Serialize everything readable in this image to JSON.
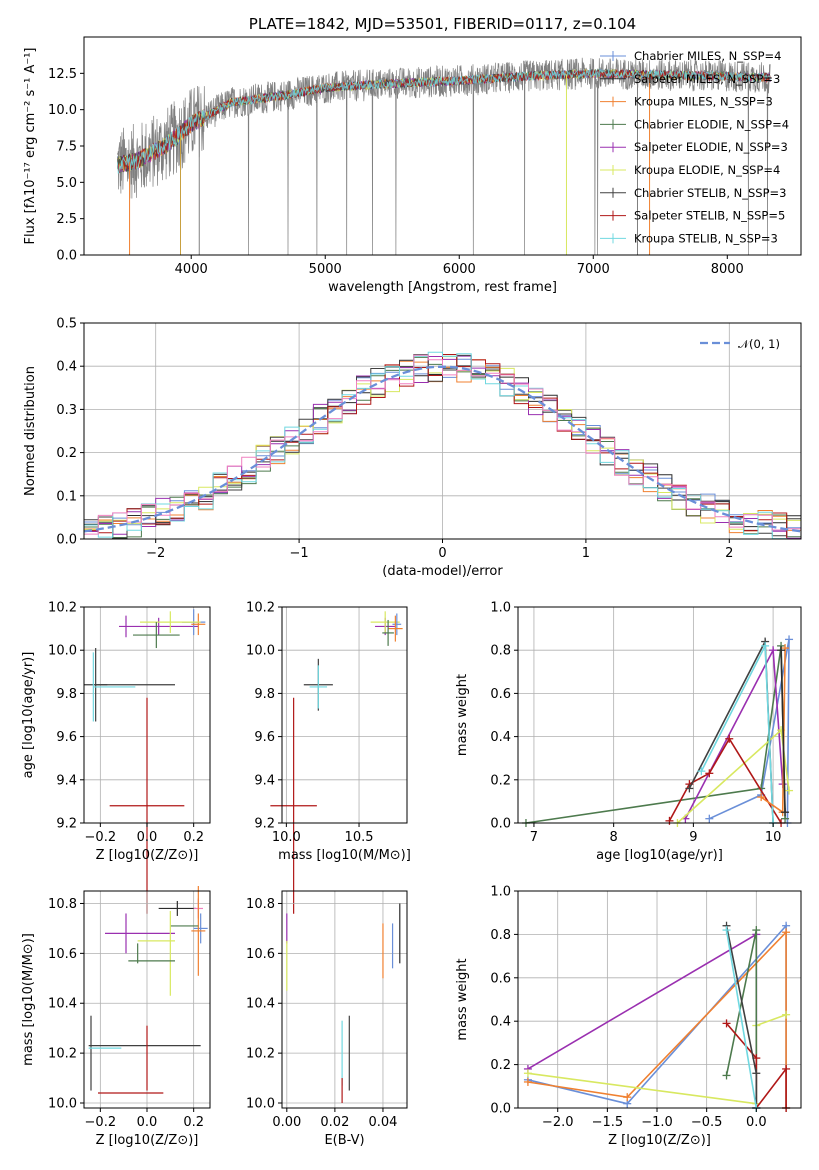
{
  "chart_data": [
    {
      "type": "line",
      "title": "PLATE=1842, MJD=53501, FIBERID=0117, z=0.104",
      "xlabel": "wavelength [Angstrom, rest frame]",
      "ylabel": "Flux [fλ10⁻¹⁷ erg cm⁻² s⁻¹ A⁻¹]",
      "xlim": [
        3200,
        8550
      ],
      "ylim": [
        0,
        15
      ],
      "xticks": [
        4000,
        5000,
        6000,
        7000,
        8000
      ],
      "yticks": [
        0.0,
        2.5,
        5.0,
        7.5,
        10.0,
        12.5
      ],
      "legend_position": "right",
      "data_range_x": [
        3450,
        8320
      ],
      "series": [
        {
          "name": "Chabrier MILES, N_SSP=4",
          "color": "#6a8fd8"
        },
        {
          "name": "Salpeter MILES, N_SSP=3",
          "color": "#2c2c2c"
        },
        {
          "name": "Kroupa MILES, N_SSP=3",
          "color": "#f08030"
        },
        {
          "name": "Chabrier ELODIE, N_SSP=4",
          "color": "#4d7a4d"
        },
        {
          "name": "Salpeter ELODIE, N_SSP=3",
          "color": "#9a30b0"
        },
        {
          "name": "Kroupa ELODIE, N_SSP=4",
          "color": "#d8e860"
        },
        {
          "name": "Chabrier STELIB, N_SSP=3",
          "color": "#404040"
        },
        {
          "name": "Salpeter STELIB, N_SSP=5",
          "color": "#b01818"
        },
        {
          "name": "Kroupa STELIB, N_SSP=3",
          "color": "#70d8e0"
        }
      ],
      "continuum": {
        "x": [
          3450,
          3600,
          3800,
          3900,
          4000,
          4300,
          4700,
          5000,
          5500,
          6000,
          6500,
          7000,
          7500,
          8000,
          8320
        ],
        "y": [
          6.2,
          6.5,
          7.5,
          8.2,
          9.0,
          10.5,
          11.0,
          11.5,
          11.8,
          12.0,
          12.3,
          12.5,
          12.4,
          12.3,
          12.2
        ]
      }
    },
    {
      "type": "line",
      "xlabel": "(data-model)/error",
      "ylabel": "Normed distribution",
      "xlim": [
        -2.5,
        2.5
      ],
      "ylim": [
        0,
        0.5
      ],
      "xticks": [
        -2,
        -1,
        0,
        1,
        2
      ],
      "yticks": [
        0.0,
        0.1,
        0.2,
        0.3,
        0.4,
        0.5
      ],
      "legend": "𝒩(0, 1)",
      "legend_position": "top-right",
      "bin_width": 0.1,
      "bin_start": -2.5,
      "reference_curve": "gaussian(0,1)"
    },
    {
      "type": "scatter",
      "xlabel": "Z [log10(Z/Z⊙)]",
      "ylabel": "age  [log10(age/yr)]",
      "xlim": [
        -0.27,
        0.27
      ],
      "ylim": [
        9.2,
        10.2
      ],
      "xticks": [
        -0.2,
        0.0,
        0.2
      ],
      "yticks": [
        9.2,
        9.4,
        9.6,
        9.8,
        10.0,
        10.2
      ],
      "points": [
        {
          "x": -0.09,
          "y": 10.11,
          "xerr": 0.0,
          "yerr": 0.05,
          "c": 4
        },
        {
          "x": 0.05,
          "y": 10.11,
          "xerr": 0.17,
          "yerr": 0.04,
          "c": 4
        },
        {
          "x": 0.2,
          "y": 10.13,
          "xerr": 0.05,
          "yerr": 0.06,
          "c": 0
        },
        {
          "x": 0.22,
          "y": 10.12,
          "xerr": 0.03,
          "yerr": 0.05,
          "c": 2
        },
        {
          "x": 0.1,
          "y": 10.13,
          "xerr": 0.13,
          "yerr": 0.05,
          "c": 5
        },
        {
          "x": 0.04,
          "y": 10.07,
          "xerr": 0.1,
          "yerr": 0.06,
          "c": 3
        },
        {
          "x": -0.22,
          "y": 9.84,
          "xerr": 0.05,
          "yerr": 0.17,
          "c": 6
        },
        {
          "x": -0.05,
          "y": 9.84,
          "xerr": 0.17,
          "yerr": 0.0,
          "c": 6
        },
        {
          "x": -0.14,
          "y": 9.83,
          "xerr": 0.09,
          "yerr": 0.0,
          "c": 8
        },
        {
          "x": -0.23,
          "y": 9.83,
          "xerr": 0.0,
          "yerr": 0.16,
          "c": 8
        },
        {
          "x": 0.0,
          "y": 9.28,
          "xerr": 0.16,
          "yerr": 0.5,
          "c": 7
        }
      ]
    },
    {
      "type": "scatter",
      "xlabel": "mass [log10(M/M⊙)]",
      "xlim": [
        9.97,
        10.83
      ],
      "ylim": [
        9.2,
        10.2
      ],
      "xticks": [
        10.0,
        10.5
      ],
      "yticks": [
        9.2,
        9.4,
        9.6,
        9.8,
        10.0,
        10.2
      ],
      "points": [
        {
          "x": 10.68,
          "y": 10.11,
          "xerr": 0.07,
          "yerr": 0.04,
          "c": 4
        },
        {
          "x": 10.68,
          "y": 10.13,
          "xerr": 0.1,
          "yerr": 0.05,
          "c": 5
        },
        {
          "x": 10.76,
          "y": 10.12,
          "xerr": 0.03,
          "yerr": 0.05,
          "c": 0
        },
        {
          "x": 10.75,
          "y": 10.1,
          "xerr": 0.05,
          "yerr": 0.06,
          "c": 2
        },
        {
          "x": 10.7,
          "y": 10.08,
          "xerr": 0.04,
          "yerr": 0.06,
          "c": 3
        },
        {
          "x": 10.22,
          "y": 9.84,
          "xerr": 0.1,
          "yerr": 0.12,
          "c": 6
        },
        {
          "x": 10.22,
          "y": 9.83,
          "xerr": 0.06,
          "yerr": 0.1,
          "c": 8
        },
        {
          "x": 10.05,
          "y": 9.28,
          "xerr": 0.16,
          "yerr": 0.5,
          "c": 7
        }
      ]
    },
    {
      "type": "line",
      "xlabel": "age  [log10(age/yr)]",
      "ylabel": "mass weight",
      "xlim": [
        6.8,
        10.35
      ],
      "ylim": [
        0,
        1
      ],
      "xticks": [
        7,
        8,
        9,
        10
      ],
      "yticks": [
        0.0,
        0.2,
        0.4,
        0.6,
        0.8,
        1.0
      ],
      "series": [
        {
          "c": 0,
          "x": [
            9.2,
            9.85,
            10.2,
            10.18
          ],
          "y": [
            0.02,
            0.13,
            0.85,
            0.0
          ]
        },
        {
          "c": 3,
          "x": [
            6.9,
            9.85,
            10.1,
            10.15
          ],
          "y": [
            0.0,
            0.16,
            0.82,
            0.02
          ]
        },
        {
          "c": 4,
          "x": [
            8.9,
            10.0,
            10.12
          ],
          "y": [
            0.02,
            0.8,
            0.18
          ]
        },
        {
          "c": 5,
          "x": [
            8.8,
            10.1,
            10.2
          ],
          "y": [
            0.0,
            0.43,
            0.15
          ]
        },
        {
          "c": 7,
          "x": [
            8.7,
            8.95,
            9.2,
            9.45,
            10.1
          ],
          "y": [
            0.01,
            0.18,
            0.23,
            0.39,
            0.0
          ]
        },
        {
          "c": 6,
          "x": [
            8.95,
            9.9,
            10.0
          ],
          "y": [
            0.16,
            0.84,
            0.0
          ]
        },
        {
          "c": 8,
          "x": [
            9.1,
            9.9,
            10.0
          ],
          "y": [
            0.24,
            0.82,
            0.0
          ]
        },
        {
          "c": 2,
          "x": [
            9.85,
            10.12,
            10.15
          ],
          "y": [
            0.12,
            0.05,
            0.81
          ]
        },
        {
          "c": 1,
          "x": [
            10.1,
            10.15
          ],
          "y": [
            0.8,
            0.05
          ]
        }
      ]
    },
    {
      "type": "scatter",
      "xlabel": "Z [log10(Z/Z⊙)]",
      "ylabel": "mass [log10(M/M⊙)]",
      "xlim": [
        -0.27,
        0.27
      ],
      "ylim": [
        9.98,
        10.85
      ],
      "xticks": [
        -0.2,
        0.0,
        0.2
      ],
      "yticks": [
        10.0,
        10.2,
        10.4,
        10.6,
        10.8
      ],
      "points": [
        {
          "x": 0.13,
          "y": 10.78,
          "xerr": 0.08,
          "yerr": 0.03,
          "c": 1
        },
        {
          "x": 0.22,
          "y": 10.78,
          "xerr": 0.02,
          "yerr": 0.04,
          "c": 9
        },
        {
          "x": 0.23,
          "y": 10.7,
          "xerr": 0.03,
          "yerr": 0.06,
          "c": 0
        },
        {
          "x": 0.22,
          "y": 10.69,
          "xerr": 0.03,
          "yerr": 0.18,
          "c": 2
        },
        {
          "x": 0.16,
          "y": 10.71,
          "xerr": 0.06,
          "yerr": 0.0,
          "c": 3
        },
        {
          "x": -0.09,
          "y": 10.68,
          "xerr": 0.0,
          "yerr": 0.08,
          "c": 4
        },
        {
          "x": -0.03,
          "y": 10.68,
          "xerr": 0.15,
          "yerr": 0.0,
          "c": 4
        },
        {
          "x": 0.04,
          "y": 10.65,
          "xerr": 0.08,
          "yerr": 0.0,
          "c": 5
        },
        {
          "x": 0.1,
          "y": 10.6,
          "xerr": 0.0,
          "yerr": 0.17,
          "c": 5
        },
        {
          "x": -0.04,
          "y": 10.6,
          "xerr": 0.0,
          "yerr": 0.04,
          "c": 3
        },
        {
          "x": 0.02,
          "y": 10.57,
          "xerr": 0.1,
          "yerr": 0.0,
          "c": 3
        },
        {
          "x": -0.01,
          "y": 10.23,
          "xerr": 0.24,
          "yerr": 0.0,
          "c": 6
        },
        {
          "x": -0.24,
          "y": 10.2,
          "xerr": 0.0,
          "yerr": 0.15,
          "c": 6
        },
        {
          "x": -0.18,
          "y": 10.22,
          "xerr": 0.07,
          "yerr": 0.0,
          "c": 8
        },
        {
          "x": 0.0,
          "y": 10.18,
          "xerr": 0.0,
          "yerr": 0.13,
          "c": 7
        },
        {
          "x": -0.07,
          "y": 10.04,
          "xerr": 0.14,
          "yerr": 0.0,
          "c": 7
        }
      ]
    },
    {
      "type": "scatter",
      "xlabel": "E(B-V)",
      "xlim": [
        -0.002,
        0.05
      ],
      "ylim": [
        9.98,
        10.85
      ],
      "xticks": [
        0.0,
        0.02,
        0.04
      ],
      "yticks": [
        10.0,
        10.2,
        10.4,
        10.6,
        10.8
      ],
      "points": [
        {
          "x": 0.0,
          "y": 10.7,
          "yerr": 0.06,
          "c": 4
        },
        {
          "x": 0.0,
          "y": 10.55,
          "yerr": 0.1,
          "c": 5
        },
        {
          "x": 0.023,
          "y": 10.2,
          "yerr": 0.13,
          "c": 8
        },
        {
          "x": 0.023,
          "y": 10.05,
          "yerr": 0.05,
          "c": 7
        },
        {
          "x": 0.026,
          "y": 10.2,
          "yerr": 0.15,
          "c": 6
        },
        {
          "x": 0.04,
          "y": 10.61,
          "yerr": 0.11,
          "c": 2
        },
        {
          "x": 0.044,
          "y": 10.63,
          "yerr": 0.09,
          "c": 0
        },
        {
          "x": 0.047,
          "y": 10.68,
          "yerr": 0.12,
          "c": 1
        }
      ]
    },
    {
      "type": "line",
      "xlabel": "Z [log10(Z/Z⊙)]",
      "ylabel": "mass weight",
      "xlim": [
        -2.4,
        0.45
      ],
      "ylim": [
        0,
        1
      ],
      "xticks": [
        -2.0,
        -1.5,
        -1.0,
        -0.5,
        0.0
      ],
      "yticks": [
        0.0,
        0.2,
        0.4,
        0.6,
        0.8,
        1.0
      ],
      "series": [
        {
          "c": 0,
          "x": [
            -2.3,
            -1.3,
            0.3,
            0.3
          ],
          "y": [
            0.13,
            0.02,
            0.84,
            0.0
          ]
        },
        {
          "c": 2,
          "x": [
            -2.3,
            -1.3,
            0.3,
            0.3
          ],
          "y": [
            0.12,
            0.05,
            0.81,
            0.0
          ]
        },
        {
          "c": 4,
          "x": [
            -2.3,
            0.0,
            0.0
          ],
          "y": [
            0.18,
            0.8,
            0.0
          ]
        },
        {
          "c": 5,
          "x": [
            -2.3,
            0.0,
            0.0,
            0.3
          ],
          "y": [
            0.16,
            0.02,
            0.38,
            0.43
          ]
        },
        {
          "c": 3,
          "x": [
            -0.3,
            0.0,
            0.0
          ],
          "y": [
            0.15,
            0.82,
            0.0
          ]
        },
        {
          "c": 7,
          "x": [
            -0.3,
            0.0,
            0.0,
            0.3,
            0.3
          ],
          "y": [
            0.39,
            0.23,
            0.0,
            0.18,
            0.0
          ]
        },
        {
          "c": 6,
          "x": [
            -0.3,
            0.0,
            0.0
          ],
          "y": [
            0.84,
            0.16,
            0.0
          ]
        },
        {
          "c": 8,
          "x": [
            -0.3,
            0.0,
            0.0
          ],
          "y": [
            0.82,
            0.0,
            0.0
          ]
        }
      ]
    }
  ],
  "palette": [
    "#6a8fd8",
    "#2c2c2c",
    "#f08030",
    "#4d7a4d",
    "#9a30b0",
    "#d8e860",
    "#404040",
    "#b01818",
    "#70d8e0",
    "#f080c0"
  ],
  "gaussian_style": {
    "color": "#6a8fd8",
    "dashed": true
  }
}
